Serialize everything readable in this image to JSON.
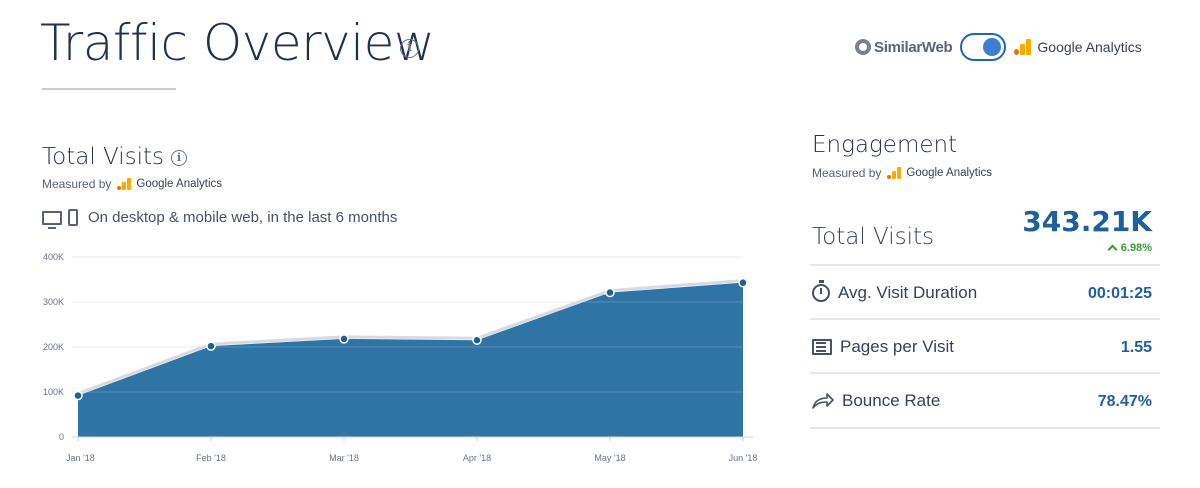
{
  "header": {
    "title": "Traffic Overview",
    "info_icon": "info-icon"
  },
  "source_switch": {
    "left_label": "SimilarWeb",
    "right_label": "Google Analytics",
    "toggle_state": "google-analytics",
    "accent": "#1f66b5"
  },
  "total_visits": {
    "title": "Total Visits",
    "measured_by": "Measured by",
    "measured_source": "Google Analytics",
    "device_text": "On desktop & mobile web, in the last 6 months"
  },
  "chart_data": {
    "type": "area",
    "categories": [
      "Jan '18",
      "Feb '18",
      "Mar '18",
      "Apr '18",
      "May '18",
      "Jun '18"
    ],
    "values": [
      92000,
      202000,
      218000,
      215000,
      321000,
      343000
    ],
    "y_ticks": [
      "0",
      "100K",
      "200K",
      "300K",
      "400K"
    ],
    "ylim": [
      0,
      400000
    ],
    "grid": true,
    "fill_color": "#2e75a6",
    "title": "",
    "xlabel": "",
    "ylabel": ""
  },
  "engagement": {
    "title": "Engagement",
    "measured_by": "Measured by",
    "measured_source": "Google Analytics",
    "total_label": "Total Visits",
    "total_value": "343.21K",
    "total_change": "6.98%",
    "metrics": [
      {
        "label": "Avg. Visit Duration",
        "value": "00:01:25",
        "icon": "timer-icon"
      },
      {
        "label": "Pages per Visit",
        "value": "1.55",
        "icon": "pages-icon"
      },
      {
        "label": "Bounce Rate",
        "value": "78.47%",
        "icon": "bounce-icon"
      }
    ]
  }
}
